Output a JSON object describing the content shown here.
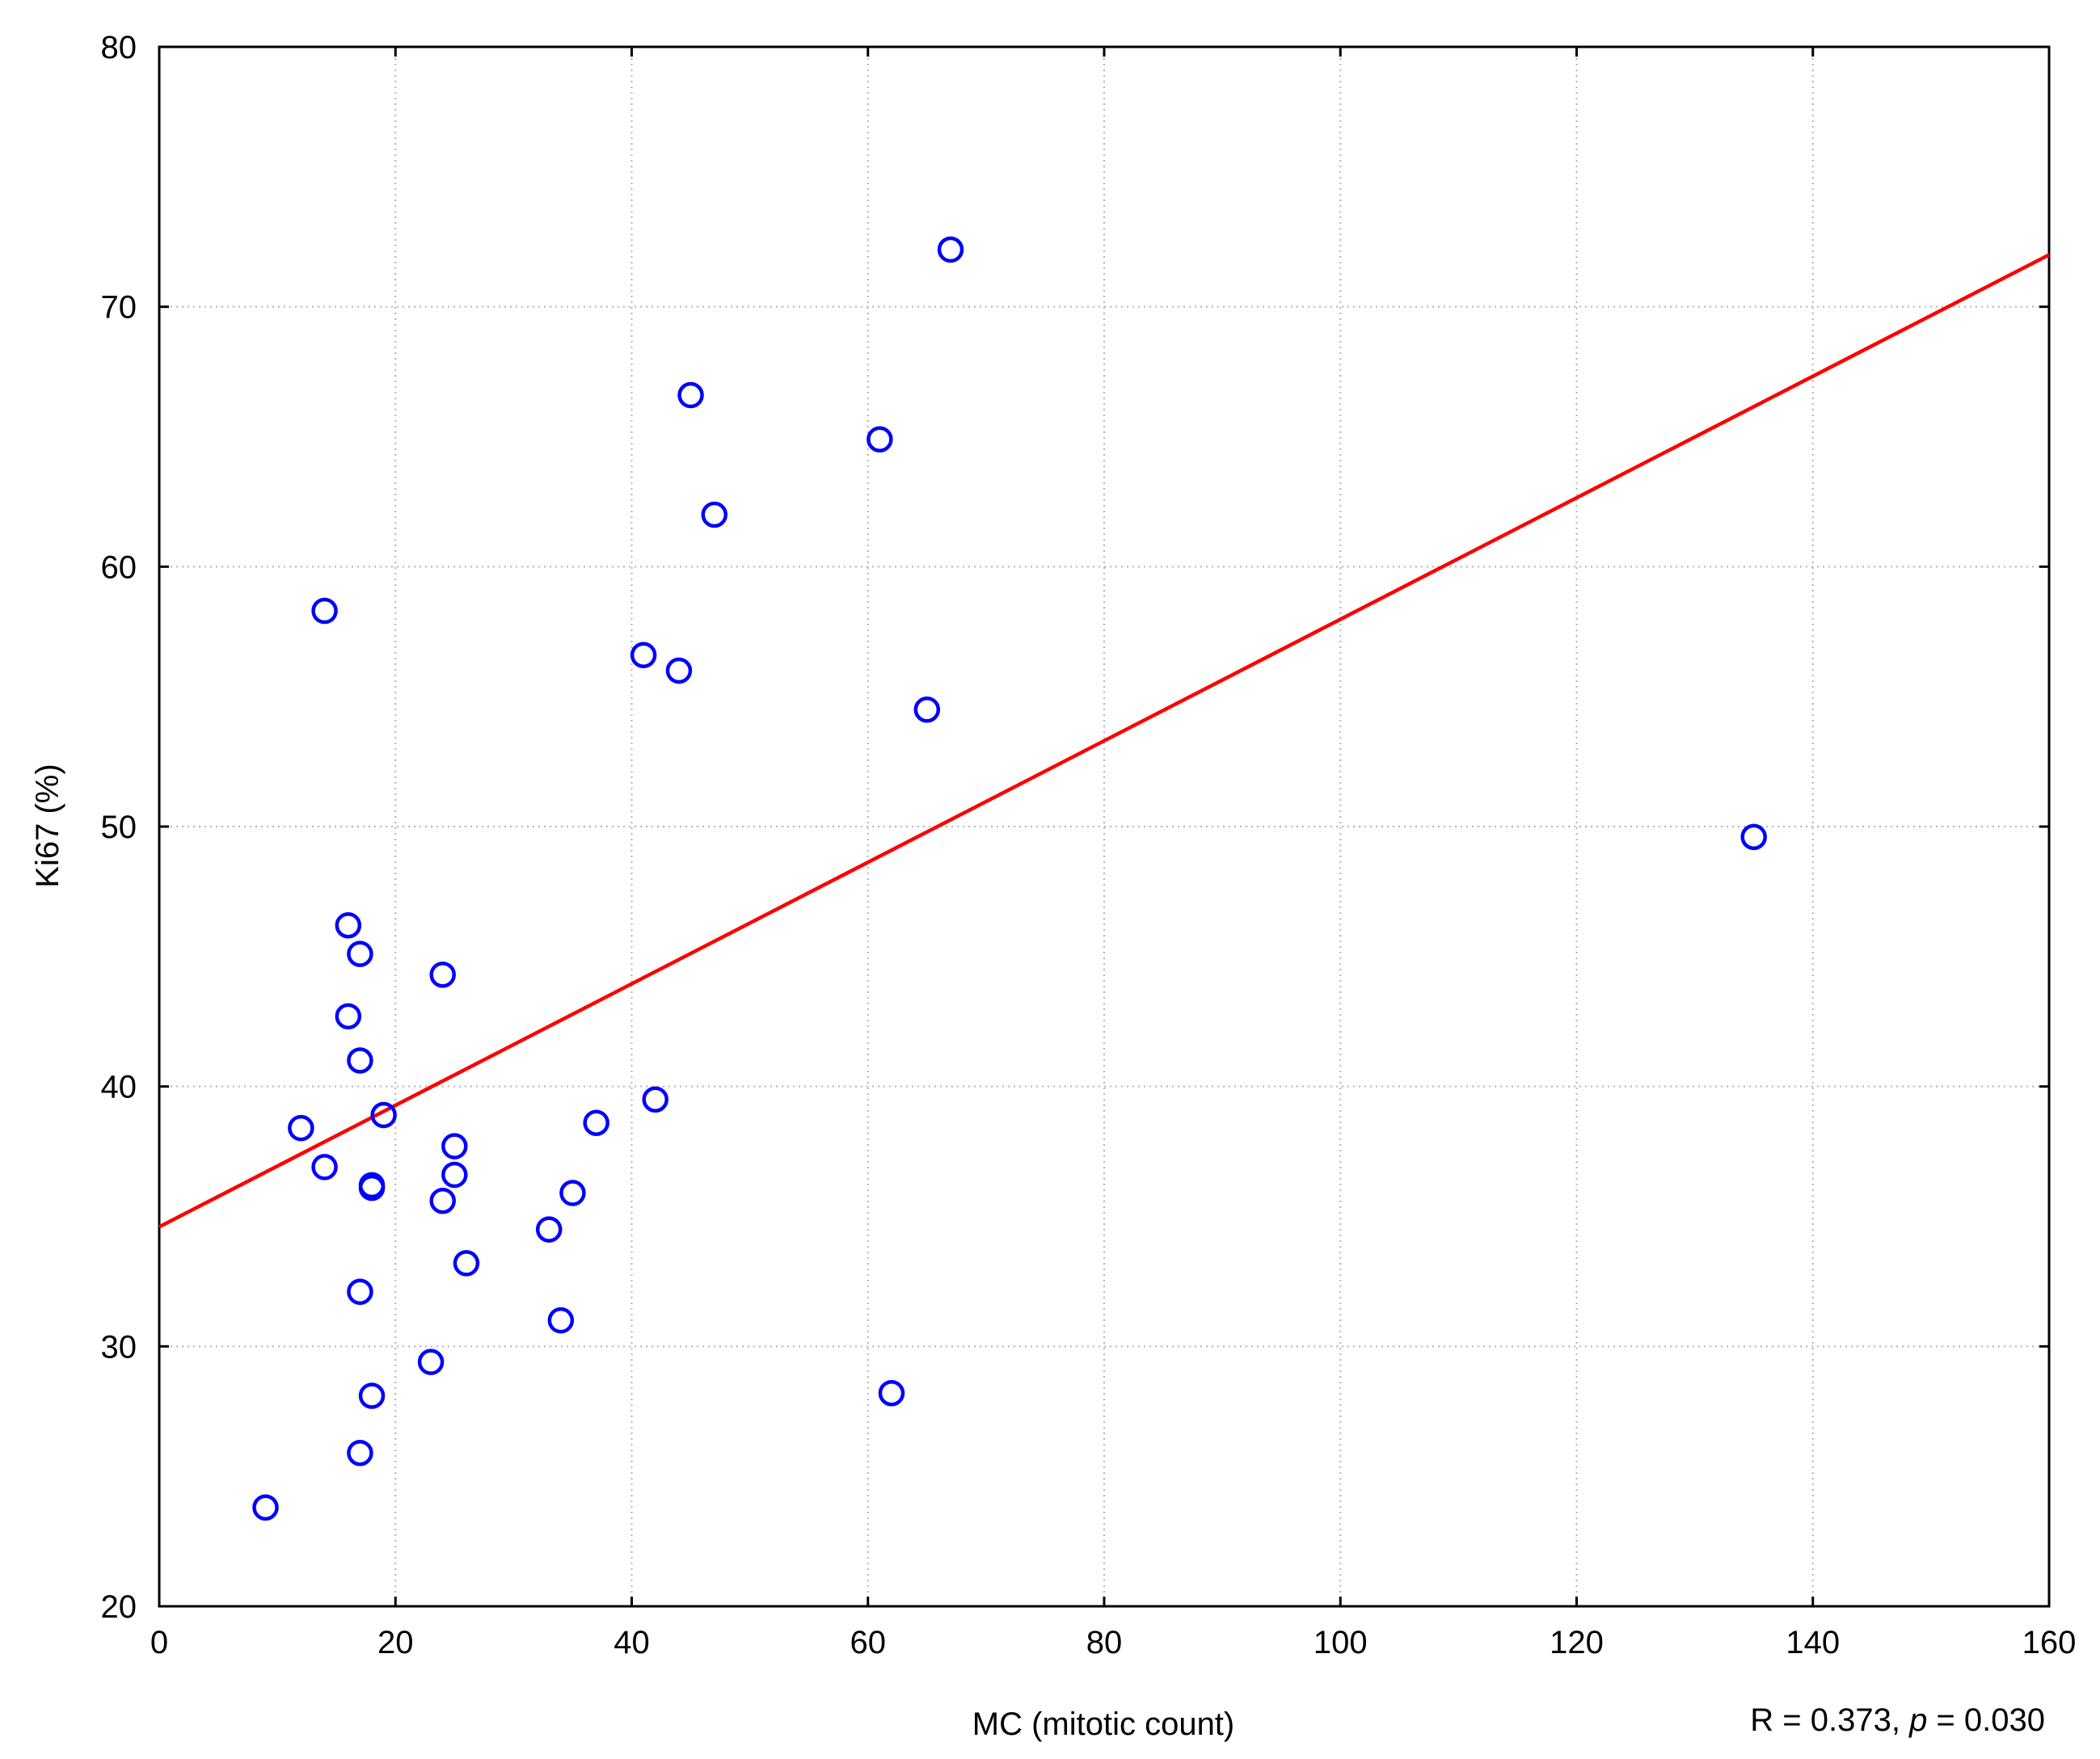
{
  "chart_data": {
    "type": "scatter",
    "xlabel": "MC (mitotic count)",
    "ylabel": "Ki67 (%)",
    "xlim": [
      0,
      160
    ],
    "ylim": [
      20,
      80
    ],
    "x_ticks": [
      0,
      20,
      40,
      60,
      80,
      100,
      120,
      140,
      160
    ],
    "y_ticks": [
      20,
      30,
      40,
      50,
      60,
      70,
      80
    ],
    "grid": true,
    "colors": {
      "points": "#0000ff",
      "fit_line": "#ff0000",
      "grid": "#b4b4b4",
      "axes": "#000000"
    },
    "points": [
      {
        "x": 9,
        "y": 23.8
      },
      {
        "x": 12,
        "y": 38.4
      },
      {
        "x": 14,
        "y": 58.3
      },
      {
        "x": 14,
        "y": 36.9
      },
      {
        "x": 16,
        "y": 46.2
      },
      {
        "x": 16,
        "y": 42.7
      },
      {
        "x": 17,
        "y": 45.1
      },
      {
        "x": 17,
        "y": 41.0
      },
      {
        "x": 17,
        "y": 32.1
      },
      {
        "x": 17,
        "y": 25.9
      },
      {
        "x": 18,
        "y": 36.2
      },
      {
        "x": 18,
        "y": 36.1
      },
      {
        "x": 18,
        "y": 28.1
      },
      {
        "x": 19,
        "y": 38.9
      },
      {
        "x": 23,
        "y": 29.4
      },
      {
        "x": 24,
        "y": 44.3
      },
      {
        "x": 24,
        "y": 35.6
      },
      {
        "x": 25,
        "y": 37.7
      },
      {
        "x": 25,
        "y": 36.6
      },
      {
        "x": 26,
        "y": 33.2
      },
      {
        "x": 33,
        "y": 34.5
      },
      {
        "x": 34,
        "y": 31.0
      },
      {
        "x": 35,
        "y": 35.9
      },
      {
        "x": 37,
        "y": 38.6
      },
      {
        "x": 41,
        "y": 56.6
      },
      {
        "x": 42,
        "y": 39.5
      },
      {
        "x": 44,
        "y": 56.0
      },
      {
        "x": 45,
        "y": 66.6
      },
      {
        "x": 47,
        "y": 62.0
      },
      {
        "x": 61,
        "y": 64.9
      },
      {
        "x": 62,
        "y": 28.2
      },
      {
        "x": 65,
        "y": 54.5
      },
      {
        "x": 67,
        "y": 72.2
      },
      {
        "x": 135,
        "y": 49.6
      }
    ],
    "regression_line": {
      "x": [
        0,
        160
      ],
      "y": [
        34.6,
        72.0
      ]
    },
    "annotation": {
      "prefix": "R = 0.373, ",
      "p_symbol": "p",
      "suffix": " = 0.030"
    }
  }
}
